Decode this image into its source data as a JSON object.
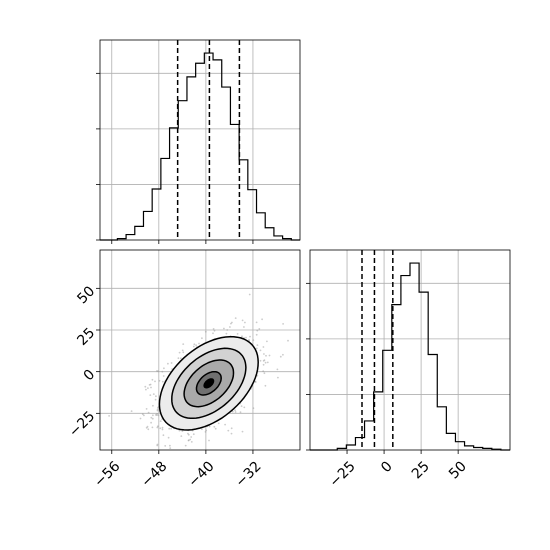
{
  "chart_data": [
    {
      "type": "histogram",
      "panel": "top-left",
      "variable_index": 0,
      "bin_range": [
        -58,
        -24
      ],
      "counts": [
        0,
        0,
        2,
        8,
        20,
        42,
        75,
        120,
        165,
        205,
        240,
        260,
        275,
        265,
        225,
        170,
        118,
        74,
        40,
        18,
        6,
        2,
        0
      ],
      "quantiles": [
        -44.8,
        -39.4,
        -34.3
      ],
      "xlim": [
        -58,
        -24
      ],
      "xticks": [
        -56,
        -48,
        -40,
        -32
      ],
      "grid": true
    },
    {
      "type": "histogram",
      "panel": "bottom-right",
      "variable_index": 1,
      "bin_range": [
        -50,
        85
      ],
      "counts": [
        0,
        0,
        0,
        2,
        6,
        15,
        35,
        70,
        120,
        175,
        210,
        225,
        190,
        115,
        52,
        20,
        10,
        5,
        3,
        2,
        1,
        0
      ],
      "quantiles": [
        -14.9,
        -6.5,
        5.9
      ],
      "xlim": [
        -50,
        85
      ],
      "xticks": [
        -25,
        0,
        25,
        50
      ],
      "grid": true
    },
    {
      "type": "contour-scatter",
      "panel": "bottom-left",
      "x_variable": 0,
      "y_variable": 1,
      "xlim": [
        -58,
        -24
      ],
      "ylim": [
        -47,
        73
      ],
      "xticks": [
        -56,
        -48,
        -40,
        -32
      ],
      "yticks": [
        -25,
        0,
        25,
        50
      ],
      "tick_labels_x": [
        "−56",
        "−48",
        "−40",
        "−32"
      ],
      "tick_labels_y": [
        "−25",
        "0",
        "25",
        "50"
      ],
      "center": [
        -39.5,
        -7
      ],
      "sd": [
        4.2,
        14
      ],
      "correlation": 0.45,
      "contour_levels_sigma": [
        0.5,
        1.0,
        1.5,
        2.0
      ],
      "grid": true
    }
  ]
}
